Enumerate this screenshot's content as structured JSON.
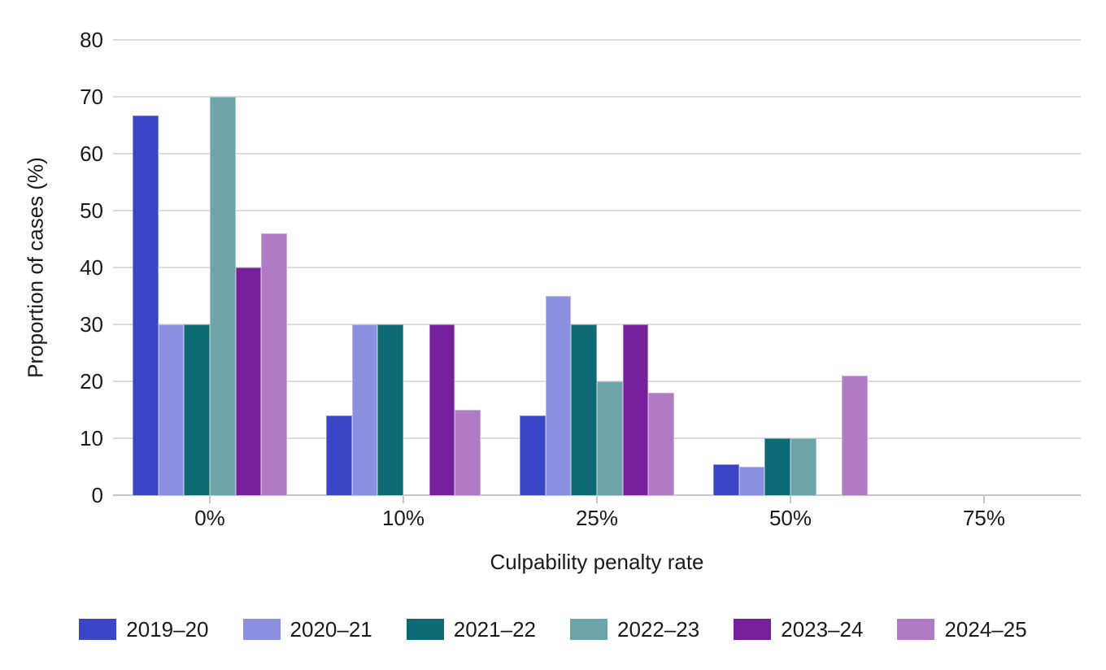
{
  "chart_data": {
    "type": "bar",
    "title": "",
    "xlabel": "Culpability penalty rate",
    "ylabel": "Proportion of cases (%)",
    "categories": [
      "0%",
      "10%",
      "25%",
      "50%",
      "75%"
    ],
    "series": [
      {
        "name": "2019–20",
        "color": "#3B45C8",
        "values": [
          66.7,
          14,
          14,
          5.5,
          0
        ]
      },
      {
        "name": "2020–21",
        "color": "#8B91E0",
        "values": [
          30,
          30,
          35,
          5,
          0
        ]
      },
      {
        "name": "2021–22",
        "color": "#0D6973",
        "values": [
          30,
          30,
          30,
          10,
          0
        ]
      },
      {
        "name": "2022–23",
        "color": "#6CA4AA",
        "values": [
          70,
          0,
          20,
          10,
          0
        ]
      },
      {
        "name": "2023–24",
        "color": "#77209D",
        "values": [
          40,
          30,
          30,
          0,
          0
        ]
      },
      {
        "name": "2024–25",
        "color": "#B07AC4",
        "values": [
          46,
          15,
          18,
          21,
          0
        ]
      }
    ],
    "ylim": [
      0,
      80
    ],
    "yticks": [
      0,
      10,
      20,
      30,
      40,
      50,
      60,
      70,
      80
    ],
    "grid": true,
    "legend_position": "bottom",
    "colors": {
      "gridline": "#dcdcdc",
      "axis_line": "#c6c6c6",
      "text": "#1a1a1a",
      "background": "#ffffff"
    }
  }
}
